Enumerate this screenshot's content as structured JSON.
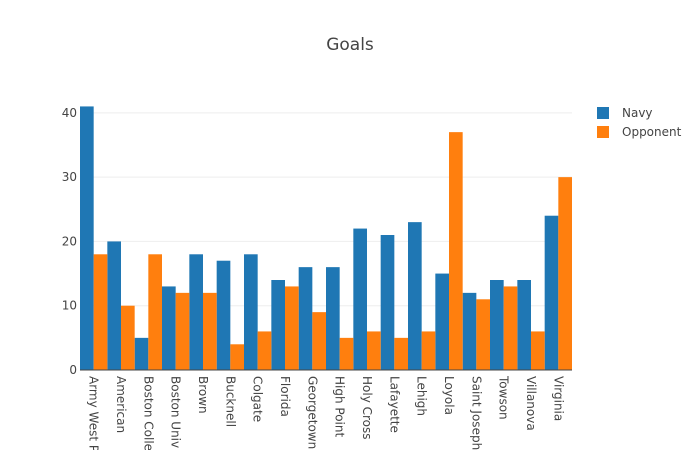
{
  "chart_data": {
    "type": "bar",
    "title": "Goals",
    "xlabel": "",
    "ylabel": "",
    "ylim": [
      0,
      42
    ],
    "yticks": [
      0,
      10,
      20,
      30,
      40
    ],
    "grid": true,
    "legend_position": "top-right",
    "categories": [
      "Army West Point",
      "American",
      "Boston College",
      "Boston Univ",
      "Brown",
      "Bucknell",
      "Colgate",
      "Florida",
      "Georgetown",
      "High Point",
      "Holy Cross",
      "Lafayette",
      "Lehigh",
      "Loyola",
      "Saint Joseph's",
      "Towson",
      "Villanova",
      "Virginia"
    ],
    "tick_labels": [
      "Army West P",
      "American",
      "Boston Colle",
      "Boston Univ",
      "Brown",
      "Bucknell",
      "Colgate",
      "Florida",
      "Georgetown",
      "High Point",
      "Holy Cross",
      "Lafayette",
      "Lehigh",
      "Loyola",
      "Saint Joseph",
      "Towson",
      "Villanova",
      "Virginia"
    ],
    "series": [
      {
        "name": "Navy",
        "color": "#1f77b4",
        "values": [
          41,
          20,
          5,
          13,
          18,
          17,
          18,
          14,
          16,
          16,
          22,
          21,
          23,
          15,
          12,
          14,
          14,
          24
        ]
      },
      {
        "name": "Opponent",
        "color": "#ff7f0e",
        "values": [
          18,
          10,
          18,
          12,
          12,
          4,
          6,
          13,
          9,
          5,
          6,
          5,
          6,
          37,
          11,
          13,
          6,
          30
        ]
      }
    ]
  }
}
